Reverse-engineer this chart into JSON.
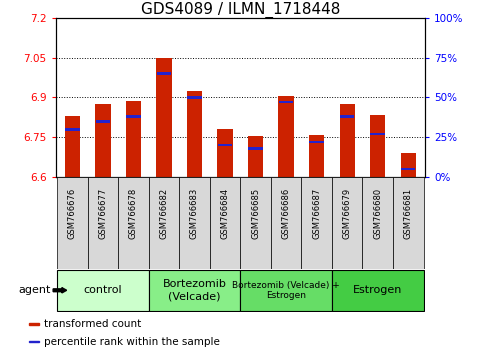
{
  "title": "GDS4089 / ILMN_1718448",
  "samples": [
    "GSM766676",
    "GSM766677",
    "GSM766678",
    "GSM766682",
    "GSM766683",
    "GSM766684",
    "GSM766685",
    "GSM766686",
    "GSM766687",
    "GSM766679",
    "GSM766680",
    "GSM766681"
  ],
  "transformed_counts": [
    6.83,
    6.875,
    6.885,
    7.05,
    6.925,
    6.78,
    6.755,
    6.905,
    6.76,
    6.875,
    6.835,
    6.69
  ],
  "percentile_ranks": [
    30,
    35,
    38,
    65,
    50,
    20,
    18,
    47,
    22,
    38,
    27,
    5
  ],
  "ylim_left": [
    6.6,
    7.2
  ],
  "ylim_right": [
    0,
    100
  ],
  "yticks_left": [
    6.6,
    6.75,
    6.9,
    7.05,
    7.2
  ],
  "yticks_right": [
    0,
    25,
    50,
    75,
    100
  ],
  "ytick_labels_right": [
    "0%",
    "25%",
    "50%",
    "75%",
    "100%"
  ],
  "hlines": [
    6.75,
    6.9,
    7.05
  ],
  "bar_color": "#cc2200",
  "percentile_color": "#2222cc",
  "groups": [
    {
      "label": "control",
      "start": 0,
      "end": 3,
      "color": "#ccffcc"
    },
    {
      "label": "Bortezomib\n(Velcade)",
      "start": 3,
      "end": 6,
      "color": "#88ee88"
    },
    {
      "label": "Bortezomib (Velcade) +\nEstrogen",
      "start": 6,
      "end": 9,
      "color": "#66dd66"
    },
    {
      "label": "Estrogen",
      "start": 9,
      "end": 12,
      "color": "#44cc44"
    }
  ],
  "legend_items": [
    {
      "label": "transformed count",
      "color": "#cc2200"
    },
    {
      "label": "percentile rank within the sample",
      "color": "#2222cc"
    }
  ],
  "agent_label": "agent",
  "bar_width": 0.5,
  "title_fontsize": 11
}
